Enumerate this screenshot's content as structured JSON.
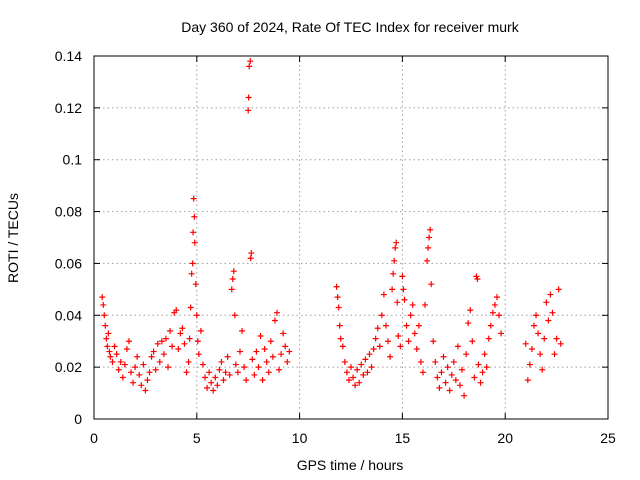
{
  "chart_data": {
    "type": "scatter",
    "title": "Day 360 of 2024, Rate Of TEC Index for receiver murk",
    "xlabel": "GPS time / hours",
    "ylabel": "ROTI / TECUs",
    "xlim": [
      0,
      25
    ],
    "ylim": [
      0,
      0.14
    ],
    "xticks": [
      0,
      5,
      10,
      15,
      20,
      25
    ],
    "xtick_labels": [
      "0",
      "5",
      "10",
      "15",
      "20",
      "25"
    ],
    "yticks": [
      0,
      0.02,
      0.04,
      0.06,
      0.08,
      0.1,
      0.12,
      0.14
    ],
    "ytick_labels": [
      "0",
      "0.02",
      "0.04",
      "0.06",
      "0.08",
      "0.1",
      "0.12",
      "0.14"
    ],
    "grid": true,
    "legend": "none",
    "marker": "plus",
    "color": "#ff0000",
    "series": [
      {
        "points": [
          [
            0.4,
            0.047
          ],
          [
            0.45,
            0.044
          ],
          [
            0.5,
            0.04
          ],
          [
            0.55,
            0.036
          ],
          [
            0.6,
            0.031
          ],
          [
            0.65,
            0.028
          ],
          [
            0.7,
            0.033
          ],
          [
            0.75,
            0.026
          ],
          [
            0.8,
            0.024
          ],
          [
            0.9,
            0.022
          ],
          [
            1.0,
            0.028
          ],
          [
            1.1,
            0.025
          ],
          [
            1.2,
            0.019
          ],
          [
            1.3,
            0.022
          ],
          [
            1.4,
            0.016
          ],
          [
            1.5,
            0.021
          ],
          [
            1.6,
            0.027
          ],
          [
            1.7,
            0.03
          ],
          [
            1.8,
            0.018
          ],
          [
            1.9,
            0.014
          ],
          [
            2.0,
            0.02
          ],
          [
            2.1,
            0.024
          ],
          [
            2.2,
            0.017
          ],
          [
            2.3,
            0.013
          ],
          [
            2.4,
            0.021
          ],
          [
            2.5,
            0.011
          ],
          [
            2.6,
            0.015
          ],
          [
            2.7,
            0.018
          ],
          [
            2.8,
            0.024
          ],
          [
            2.9,
            0.026
          ],
          [
            3.0,
            0.019
          ],
          [
            3.1,
            0.029
          ],
          [
            3.2,
            0.022
          ],
          [
            3.3,
            0.03
          ],
          [
            3.4,
            0.025
          ],
          [
            3.5,
            0.031
          ],
          [
            3.6,
            0.02
          ],
          [
            3.7,
            0.034
          ],
          [
            3.8,
            0.028
          ],
          [
            3.9,
            0.041
          ],
          [
            4.0,
            0.042
          ],
          [
            4.1,
            0.027
          ],
          [
            4.2,
            0.033
          ],
          [
            4.3,
            0.035
          ],
          [
            4.4,
            0.029
          ],
          [
            4.5,
            0.018
          ],
          [
            4.6,
            0.022
          ],
          [
            4.65,
            0.031
          ],
          [
            4.7,
            0.043
          ],
          [
            4.75,
            0.056
          ],
          [
            4.8,
            0.06
          ],
          [
            4.82,
            0.072
          ],
          [
            4.85,
            0.085
          ],
          [
            4.88,
            0.078
          ],
          [
            4.9,
            0.068
          ],
          [
            4.95,
            0.052
          ],
          [
            5.0,
            0.04
          ],
          [
            5.05,
            0.03
          ],
          [
            5.1,
            0.025
          ],
          [
            5.2,
            0.034
          ],
          [
            5.3,
            0.021
          ],
          [
            5.4,
            0.016
          ],
          [
            5.5,
            0.012
          ],
          [
            5.6,
            0.018
          ],
          [
            5.7,
            0.014
          ],
          [
            5.8,
            0.011
          ],
          [
            5.9,
            0.016
          ],
          [
            6.0,
            0.013
          ],
          [
            6.1,
            0.019
          ],
          [
            6.2,
            0.022
          ],
          [
            6.3,
            0.015
          ],
          [
            6.4,
            0.018
          ],
          [
            6.5,
            0.024
          ],
          [
            6.6,
            0.017
          ],
          [
            6.7,
            0.05
          ],
          [
            6.75,
            0.054
          ],
          [
            6.8,
            0.057
          ],
          [
            6.85,
            0.04
          ],
          [
            6.9,
            0.021
          ],
          [
            7.0,
            0.018
          ],
          [
            7.1,
            0.026
          ],
          [
            7.2,
            0.034
          ],
          [
            7.3,
            0.02
          ],
          [
            7.4,
            0.015
          ],
          [
            7.5,
            0.119
          ],
          [
            7.52,
            0.124
          ],
          [
            7.55,
            0.136
          ],
          [
            7.6,
            0.138
          ],
          [
            7.62,
            0.062
          ],
          [
            7.65,
            0.064
          ],
          [
            7.7,
            0.023
          ],
          [
            7.8,
            0.017
          ],
          [
            7.9,
            0.026
          ],
          [
            8.0,
            0.02
          ],
          [
            8.1,
            0.032
          ],
          [
            8.2,
            0.015
          ],
          [
            8.3,
            0.027
          ],
          [
            8.4,
            0.022
          ],
          [
            8.5,
            0.018
          ],
          [
            8.6,
            0.03
          ],
          [
            8.7,
            0.024
          ],
          [
            8.8,
            0.038
          ],
          [
            8.9,
            0.041
          ],
          [
            9.0,
            0.019
          ],
          [
            9.1,
            0.025
          ],
          [
            9.2,
            0.033
          ],
          [
            9.3,
            0.028
          ],
          [
            9.4,
            0.022
          ],
          [
            9.5,
            0.026
          ],
          [
            11.8,
            0.051
          ],
          [
            11.85,
            0.047
          ],
          [
            11.9,
            0.043
          ],
          [
            11.95,
            0.036
          ],
          [
            12.0,
            0.031
          ],
          [
            12.1,
            0.028
          ],
          [
            12.2,
            0.022
          ],
          [
            12.3,
            0.018
          ],
          [
            12.4,
            0.015
          ],
          [
            12.5,
            0.02
          ],
          [
            12.6,
            0.016
          ],
          [
            12.7,
            0.013
          ],
          [
            12.8,
            0.019
          ],
          [
            12.9,
            0.014
          ],
          [
            13.0,
            0.021
          ],
          [
            13.1,
            0.017
          ],
          [
            13.2,
            0.023
          ],
          [
            13.3,
            0.018
          ],
          [
            13.4,
            0.025
          ],
          [
            13.5,
            0.02
          ],
          [
            13.6,
            0.027
          ],
          [
            13.7,
            0.031
          ],
          [
            13.8,
            0.035
          ],
          [
            13.9,
            0.028
          ],
          [
            14.0,
            0.04
          ],
          [
            14.1,
            0.048
          ],
          [
            14.2,
            0.036
          ],
          [
            14.3,
            0.03
          ],
          [
            14.4,
            0.024
          ],
          [
            14.5,
            0.05
          ],
          [
            14.55,
            0.056
          ],
          [
            14.6,
            0.061
          ],
          [
            14.65,
            0.066
          ],
          [
            14.7,
            0.068
          ],
          [
            14.75,
            0.045
          ],
          [
            14.8,
            0.032
          ],
          [
            14.9,
            0.028
          ],
          [
            15.0,
            0.055
          ],
          [
            15.05,
            0.05
          ],
          [
            15.1,
            0.046
          ],
          [
            15.2,
            0.036
          ],
          [
            15.3,
            0.03
          ],
          [
            15.4,
            0.04
          ],
          [
            15.5,
            0.044
          ],
          [
            15.6,
            0.033
          ],
          [
            15.7,
            0.027
          ],
          [
            15.8,
            0.036
          ],
          [
            15.9,
            0.022
          ],
          [
            16.0,
            0.018
          ],
          [
            16.1,
            0.044
          ],
          [
            16.2,
            0.061
          ],
          [
            16.25,
            0.066
          ],
          [
            16.3,
            0.07
          ],
          [
            16.35,
            0.073
          ],
          [
            16.4,
            0.052
          ],
          [
            16.5,
            0.03
          ],
          [
            16.6,
            0.022
          ],
          [
            16.7,
            0.016
          ],
          [
            16.8,
            0.012
          ],
          [
            16.9,
            0.018
          ],
          [
            17.0,
            0.024
          ],
          [
            17.1,
            0.014
          ],
          [
            17.2,
            0.02
          ],
          [
            17.3,
            0.011
          ],
          [
            17.4,
            0.017
          ],
          [
            17.5,
            0.022
          ],
          [
            17.6,
            0.015
          ],
          [
            17.7,
            0.028
          ],
          [
            17.8,
            0.013
          ],
          [
            17.9,
            0.019
          ],
          [
            18.0,
            0.009
          ],
          [
            18.1,
            0.025
          ],
          [
            18.2,
            0.037
          ],
          [
            18.3,
            0.042
          ],
          [
            18.4,
            0.03
          ],
          [
            18.5,
            0.016
          ],
          [
            18.6,
            0.055
          ],
          [
            18.65,
            0.054
          ],
          [
            18.7,
            0.021
          ],
          [
            18.8,
            0.014
          ],
          [
            18.9,
            0.018
          ],
          [
            19.0,
            0.025
          ],
          [
            19.1,
            0.02
          ],
          [
            19.2,
            0.031
          ],
          [
            19.3,
            0.036
          ],
          [
            19.4,
            0.041
          ],
          [
            19.5,
            0.044
          ],
          [
            19.6,
            0.047
          ],
          [
            19.7,
            0.04
          ],
          [
            19.8,
            0.033
          ],
          [
            21.0,
            0.029
          ],
          [
            21.1,
            0.015
          ],
          [
            21.2,
            0.021
          ],
          [
            21.3,
            0.027
          ],
          [
            21.4,
            0.036
          ],
          [
            21.5,
            0.04
          ],
          [
            21.6,
            0.033
          ],
          [
            21.7,
            0.025
          ],
          [
            21.8,
            0.019
          ],
          [
            21.9,
            0.031
          ],
          [
            22.0,
            0.045
          ],
          [
            22.1,
            0.038
          ],
          [
            22.2,
            0.048
          ],
          [
            22.3,
            0.041
          ],
          [
            22.4,
            0.025
          ],
          [
            22.5,
            0.031
          ],
          [
            22.6,
            0.05
          ],
          [
            22.7,
            0.029
          ]
        ]
      }
    ]
  }
}
